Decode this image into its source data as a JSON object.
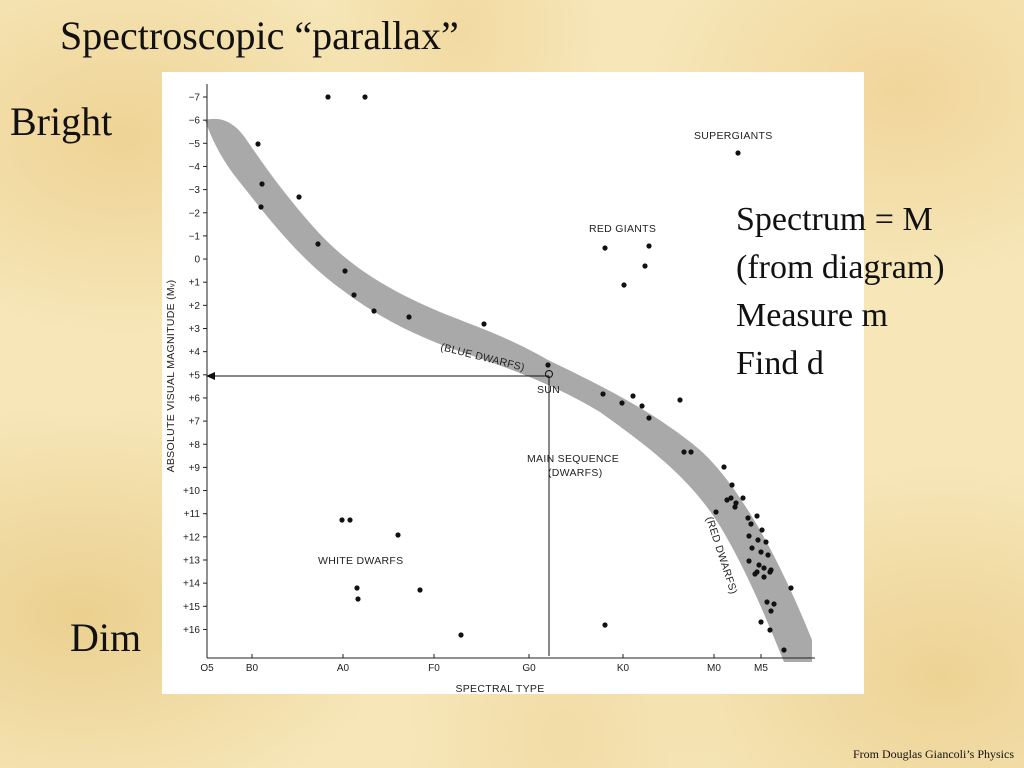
{
  "slide": {
    "title": "Spectroscopic “parallax”",
    "bright_label": "Bright",
    "dim_label": "Dim",
    "steps": [
      "Spectrum = M",
      "(from diagram)",
      "Measure m",
      "Find d"
    ],
    "credit": "From Douglas Giancoli’s Physics"
  },
  "diagram": {
    "y_axis_title": "ABSOLUTE VISUAL MAGNITUDE (Mᵥ)",
    "x_axis_title": "SPECTRAL TYPE",
    "y_ticks": [
      "−7",
      "−6",
      "−5",
      "−4",
      "−3",
      "−2",
      "−1",
      "0",
      "+1",
      "+2",
      "+3",
      "+4",
      "+5",
      "+6",
      "+7",
      "+8",
      "+9",
      "+10",
      "+11",
      "+12",
      "+13",
      "+14",
      "+15",
      "+16"
    ],
    "x_ticks": [
      "O5",
      "B0",
      "A0",
      "F0",
      "G0",
      "K0",
      "M0",
      "M5"
    ],
    "regions": {
      "supergiants": "SUPERGIANTS",
      "red_giants": "RED GIANTS",
      "blue_dwarfs": "(BLUE DWARFS)",
      "sun": "SUN",
      "main_sequence": "MAIN SEQUENCE",
      "dwarfs": "(DWARFS)",
      "red_dwarfs": "(RED DWARFS)",
      "white_dwarfs": "WHITE DWARFS"
    },
    "colors": {
      "band": "#a9a9a9",
      "dot": "#111111",
      "line": "#111111"
    },
    "sun_magnitude": 5,
    "sun_spectral_position": 5.45
  }
}
